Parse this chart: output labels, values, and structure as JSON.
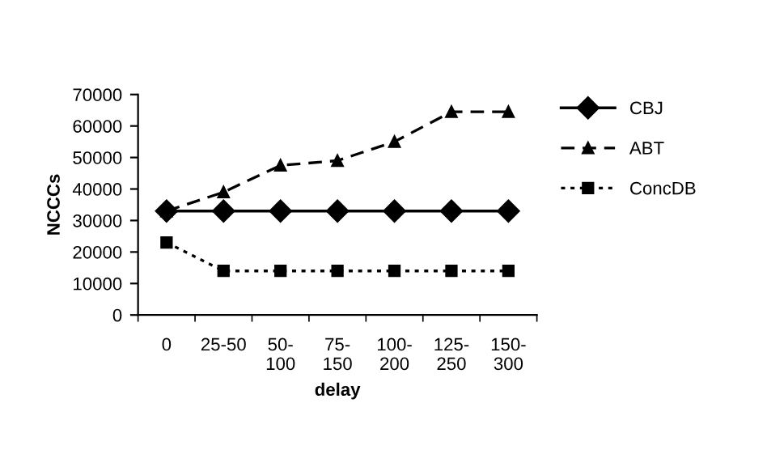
{
  "chart_data": {
    "type": "line",
    "xlabel": "delay",
    "ylabel": "NCCCs",
    "categories": [
      "0",
      "25-50",
      "50-\n100",
      "75-\n150",
      "100-\n200",
      "125-\n250",
      "150-\n300"
    ],
    "series": [
      {
        "name": "CBJ",
        "color": "#000000",
        "marker": "diamond",
        "line_style": "solid",
        "values": [
          33000,
          33000,
          33000,
          33000,
          33000,
          33000,
          33000
        ]
      },
      {
        "name": "ABT",
        "color": "#000000",
        "marker": "triangle",
        "line_style": "dashed",
        "values": [
          33000,
          39000,
          47500,
          49000,
          55000,
          64500,
          64500
        ]
      },
      {
        "name": "ConcDB",
        "color": "#000000",
        "marker": "square",
        "line_style": "dotted",
        "values": [
          23000,
          14000,
          14000,
          14000,
          14000,
          14000,
          14000
        ]
      }
    ],
    "ylim": [
      0,
      70000
    ],
    "yticks": [
      0,
      10000,
      20000,
      30000,
      40000,
      50000,
      60000,
      70000
    ],
    "grid": false,
    "legend": "right"
  }
}
